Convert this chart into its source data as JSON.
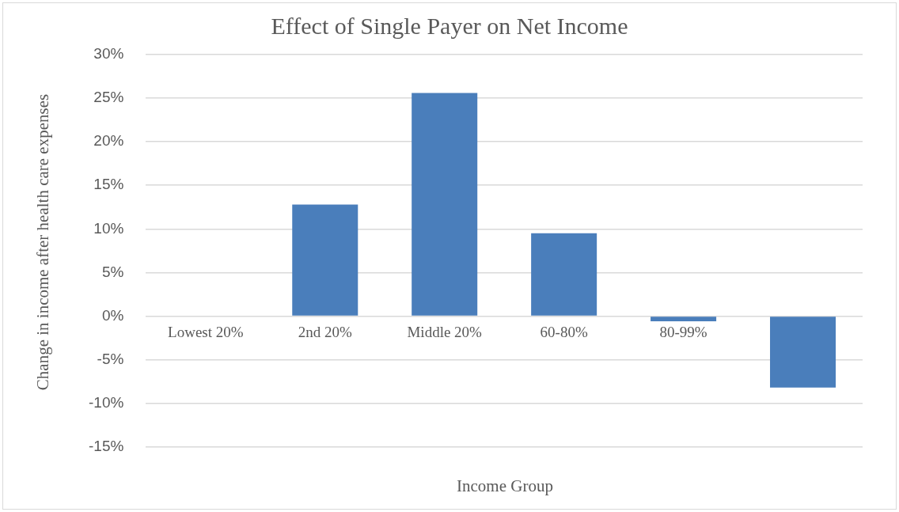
{
  "chart_data": {
    "type": "bar",
    "title": "Effect of Single Payer on Net Income",
    "xlabel": "Income Group",
    "ylabel": "Change in income after health care expenses",
    "categories": [
      "Lowest 20%",
      "2nd 20%",
      "Middle 20%",
      "60-80%",
      "80-99%",
      null
    ],
    "values": [
      0,
      12.8,
      25.6,
      9.5,
      -0.6,
      -8.2
    ],
    "color": "#4a7ebb",
    "ylim": [
      -15,
      30
    ],
    "yticks": [
      {
        "value": -15,
        "label": "-15%"
      },
      {
        "value": -10,
        "label": "-10%"
      },
      {
        "value": -5,
        "label": "-5%"
      },
      {
        "value": 0,
        "label": "0%"
      },
      {
        "value": 5,
        "label": "5%"
      },
      {
        "value": 10,
        "label": "10%"
      },
      {
        "value": 15,
        "label": "15%"
      },
      {
        "value": 20,
        "label": "20%"
      },
      {
        "value": 25,
        "label": "25%"
      },
      {
        "value": 30,
        "label": "30%"
      }
    ],
    "grid": "y",
    "legend": false
  }
}
